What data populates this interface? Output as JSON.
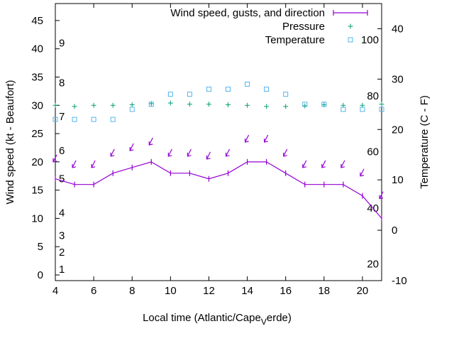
{
  "chart_data": {
    "type": "line",
    "xlabel": "Local time (Atlantic/Cape",
    "xlabel_sub": "V",
    "xlabel_tail": "erde)",
    "ylabel": "Wind speed (kt - Beaufort)",
    "y2label": "Temperature (C - F)",
    "xlim": [
      4,
      21
    ],
    "ylim": [
      -1,
      48
    ],
    "y2lim": [
      -10,
      45
    ],
    "x_ticks": [
      "4",
      "6",
      "8",
      "10",
      "12",
      "14",
      "16",
      "18",
      "20"
    ],
    "y_ticks": [
      "0",
      "5",
      "10",
      "15",
      "20",
      "25",
      "30",
      "35",
      "40",
      "45"
    ],
    "y2_ticks": [
      "-10",
      "0",
      "10",
      "20",
      "30",
      "40"
    ],
    "beaufort_labels": [
      {
        "label": "1",
        "kt": 1
      },
      {
        "label": "2",
        "kt": 4
      },
      {
        "label": "3",
        "kt": 7
      },
      {
        "label": "4",
        "kt": 11
      },
      {
        "label": "5",
        "kt": 17
      },
      {
        "label": "6",
        "kt": 22
      },
      {
        "label": "7",
        "kt": 28
      },
      {
        "label": "8",
        "kt": 34
      },
      {
        "label": "9",
        "kt": 41
      }
    ],
    "fahrenheit_labels": [
      {
        "label": "20",
        "c": -6.7
      },
      {
        "label": "40",
        "c": 4.4
      },
      {
        "label": "60",
        "c": 15.6
      },
      {
        "label": "80",
        "c": 26.7
      },
      {
        "label": "100",
        "c": 37.8
      }
    ],
    "legend": {
      "position": "top-right",
      "wind": "Wind speed, gusts, and direction",
      "pressure": "Pressure",
      "temperature": "Temperature"
    },
    "colors": {
      "wind": "#9400d3",
      "pressure": "#009e73",
      "temperature": "#56b4e9"
    },
    "series": [
      {
        "name": "Wind speed, gusts, and direction",
        "x": [
          4,
          5,
          6,
          7,
          8,
          9,
          10,
          11,
          12,
          13,
          14,
          15,
          16,
          17,
          18,
          19,
          20,
          21
        ],
        "values": [
          17,
          16,
          16,
          18,
          19,
          20,
          18,
          18,
          17,
          18,
          20,
          20,
          18,
          16,
          16,
          16,
          14,
          10
        ]
      },
      {
        "name": "Wind direction arrows",
        "x": [
          4,
          5,
          6,
          7,
          8,
          9,
          10,
          11,
          12,
          13,
          14,
          15,
          16,
          17,
          18,
          19,
          20,
          21
        ],
        "values": [
          20.5,
          19.5,
          19.5,
          21.5,
          22.5,
          23.5,
          21.5,
          21.5,
          21,
          21.5,
          24,
          24,
          21.5,
          19.5,
          19.5,
          19.5,
          18,
          14
        ]
      },
      {
        "name": "Pressure",
        "x": [
          4,
          5,
          6,
          7,
          8,
          9,
          10,
          11,
          12,
          13,
          14,
          15,
          16,
          17,
          18,
          19,
          20,
          21
        ],
        "values": [
          30,
          29.8,
          30,
          30,
          30.1,
          30.3,
          30.4,
          30.2,
          30.2,
          30.1,
          30,
          29.8,
          29.8,
          29.9,
          30.1,
          30,
          30,
          30.2
        ]
      },
      {
        "name": "Temperature",
        "x": [
          4,
          5,
          6,
          7,
          8,
          9,
          10,
          11,
          12,
          13,
          14,
          15,
          16,
          17,
          18,
          19,
          20,
          21
        ],
        "values": [
          22,
          22,
          22,
          22,
          24,
          25,
          27,
          27,
          28,
          28,
          29,
          28,
          27,
          25,
          25,
          24,
          24,
          24
        ]
      }
    ]
  }
}
